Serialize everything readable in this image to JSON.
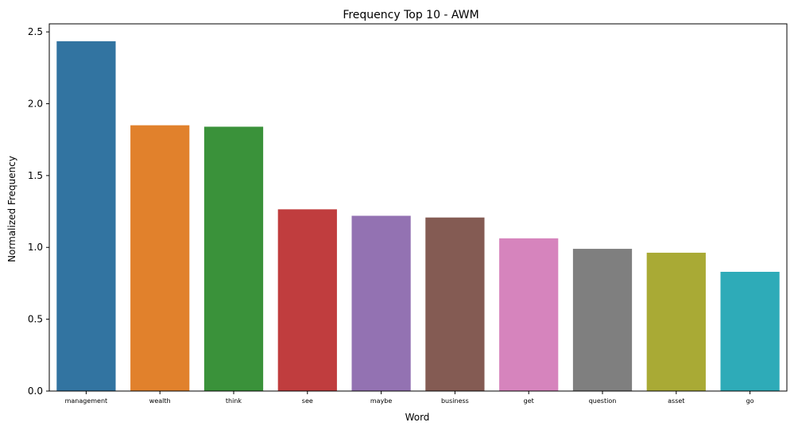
{
  "chart_data": {
    "type": "bar",
    "title": "Frequency Top 10 - AWM",
    "xlabel": "Word",
    "ylabel": "Normalized Frequency",
    "categories": [
      "management",
      "wealth",
      "think",
      "see",
      "maybe",
      "business",
      "get",
      "question",
      "asset",
      "go"
    ],
    "values": [
      2.435,
      1.85,
      1.84,
      1.265,
      1.22,
      1.208,
      1.063,
      0.99,
      0.963,
      0.83
    ],
    "colors": [
      "#3274a1",
      "#e1812c",
      "#3a923a",
      "#c03d3e",
      "#9372b2",
      "#845b53",
      "#d684bd",
      "#7f7f7f",
      "#a9aa35",
      "#2eabb8"
    ],
    "ylim": [
      0,
      2.556
    ],
    "yticks": [
      "0.0",
      "0.5",
      "1.0",
      "1.5",
      "2.0",
      "2.5"
    ],
    "ytick_values": [
      0,
      0.5,
      1.0,
      1.5,
      2.0,
      2.5
    ],
    "grid": false,
    "legend": "none"
  }
}
